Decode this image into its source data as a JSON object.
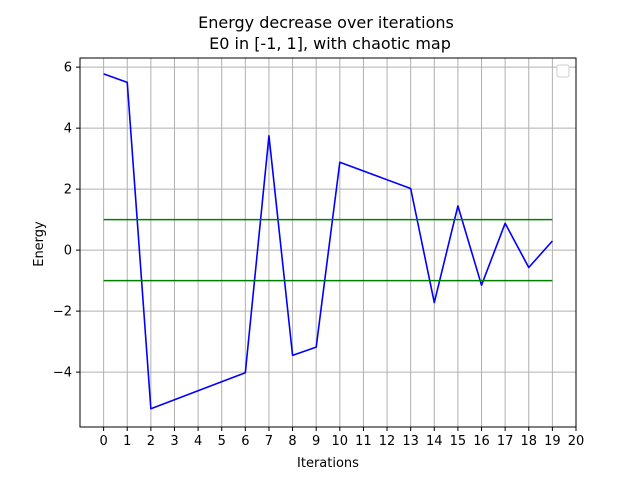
{
  "chart_data": {
    "type": "line",
    "title_line1": "Energy decrease over iterations",
    "title_line2": "E0 in [-1, 1], with chaotic map",
    "xlabel": "Iterations",
    "ylabel": "Energy",
    "xlim": [
      -1,
      20
    ],
    "ylim": [
      -5.8,
      6.3
    ],
    "xticks": [
      0,
      1,
      2,
      3,
      4,
      5,
      6,
      7,
      8,
      9,
      10,
      11,
      12,
      13,
      14,
      15,
      16,
      17,
      18,
      19,
      20
    ],
    "xtick_labels": [
      "0",
      "1",
      "2",
      "3",
      "4",
      "5",
      "6",
      "7",
      "8",
      "9",
      "10",
      "11",
      "12",
      "13",
      "14",
      "15",
      "16",
      "17",
      "18",
      "19",
      "20"
    ],
    "yticks": [
      -4,
      -2,
      0,
      2,
      4,
      6
    ],
    "ytick_labels": [
      "−4",
      "−2",
      "0",
      "2",
      "4",
      "6"
    ],
    "grid": true,
    "legend": "top-right",
    "series": [
      {
        "color": "#0000ff",
        "x": [
          0,
          1,
          2,
          6,
          7,
          8,
          9,
          10,
          13,
          14,
          15,
          16,
          17,
          18,
          19
        ],
        "y": [
          5.78,
          5.5,
          -5.2,
          -4.02,
          3.75,
          -3.45,
          -3.18,
          2.88,
          2.02,
          -1.72,
          1.45,
          -1.15,
          0.88,
          -0.57,
          0.3
        ]
      },
      {
        "color": "#008000",
        "x": [
          0,
          19
        ],
        "y": [
          1,
          1
        ]
      },
      {
        "color": "#008000",
        "x": [
          0,
          19
        ],
        "y": [
          -1,
          -1
        ]
      }
    ]
  }
}
